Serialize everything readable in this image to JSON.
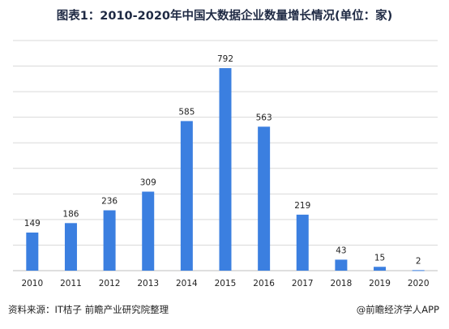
{
  "header": {
    "title": "图表1：2010-2020年中国大数据企业数量增长情况(单位：家)"
  },
  "footer": {
    "source": "资料来源：IT桔子 前瞻产业研究院整理",
    "credit": "@前瞻经济学人APP"
  },
  "colors": {
    "bar": "#3b7fe0"
  },
  "chart_data": {
    "type": "bar",
    "title": "图表1：2010-2020年中国大数据企业数量增长情况(单位：家)",
    "categories": [
      "2010",
      "2011",
      "2012",
      "2013",
      "2014",
      "2015",
      "2016",
      "2017",
      "2018",
      "2019",
      "2020"
    ],
    "values": [
      149,
      186,
      236,
      309,
      585,
      792,
      563,
      219,
      43,
      15,
      2
    ],
    "ylim": [
      0,
      900
    ],
    "grid": true,
    "legend": "none"
  }
}
